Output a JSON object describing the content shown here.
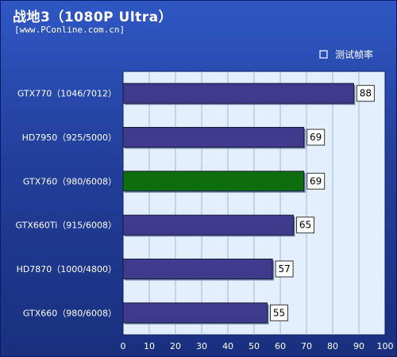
{
  "header": {
    "title": "战地3（1080P Ultra）",
    "source": "[www.PConline.com.cn]"
  },
  "chart_data": {
    "type": "bar",
    "orientation": "horizontal",
    "title": "战地3（1080P Ultra）",
    "xlabel": "",
    "ylabel": "",
    "xlim": [
      0,
      100
    ],
    "ticks": [
      0,
      10,
      20,
      30,
      40,
      50,
      60,
      70,
      80,
      90,
      100
    ],
    "grid": true,
    "legend_position": "top-right",
    "categories": [
      "GTX770（1046/7012）",
      "HD7950（925/5000）",
      "GTX760（980/6008）",
      "GTX660Ti（915/6008）",
      "HD7870（1000/4800）",
      "GTX660（980/6008）"
    ],
    "series": [
      {
        "name": "测试帧率",
        "values": [
          88,
          69,
          69,
          65,
          57,
          55
        ]
      }
    ],
    "highlight_index": 2,
    "colors": {
      "bar": "#3e3a8c",
      "highlight": "#0e6e0e",
      "plot_bg": "#e3effd",
      "grid": "#9fb6da"
    }
  }
}
